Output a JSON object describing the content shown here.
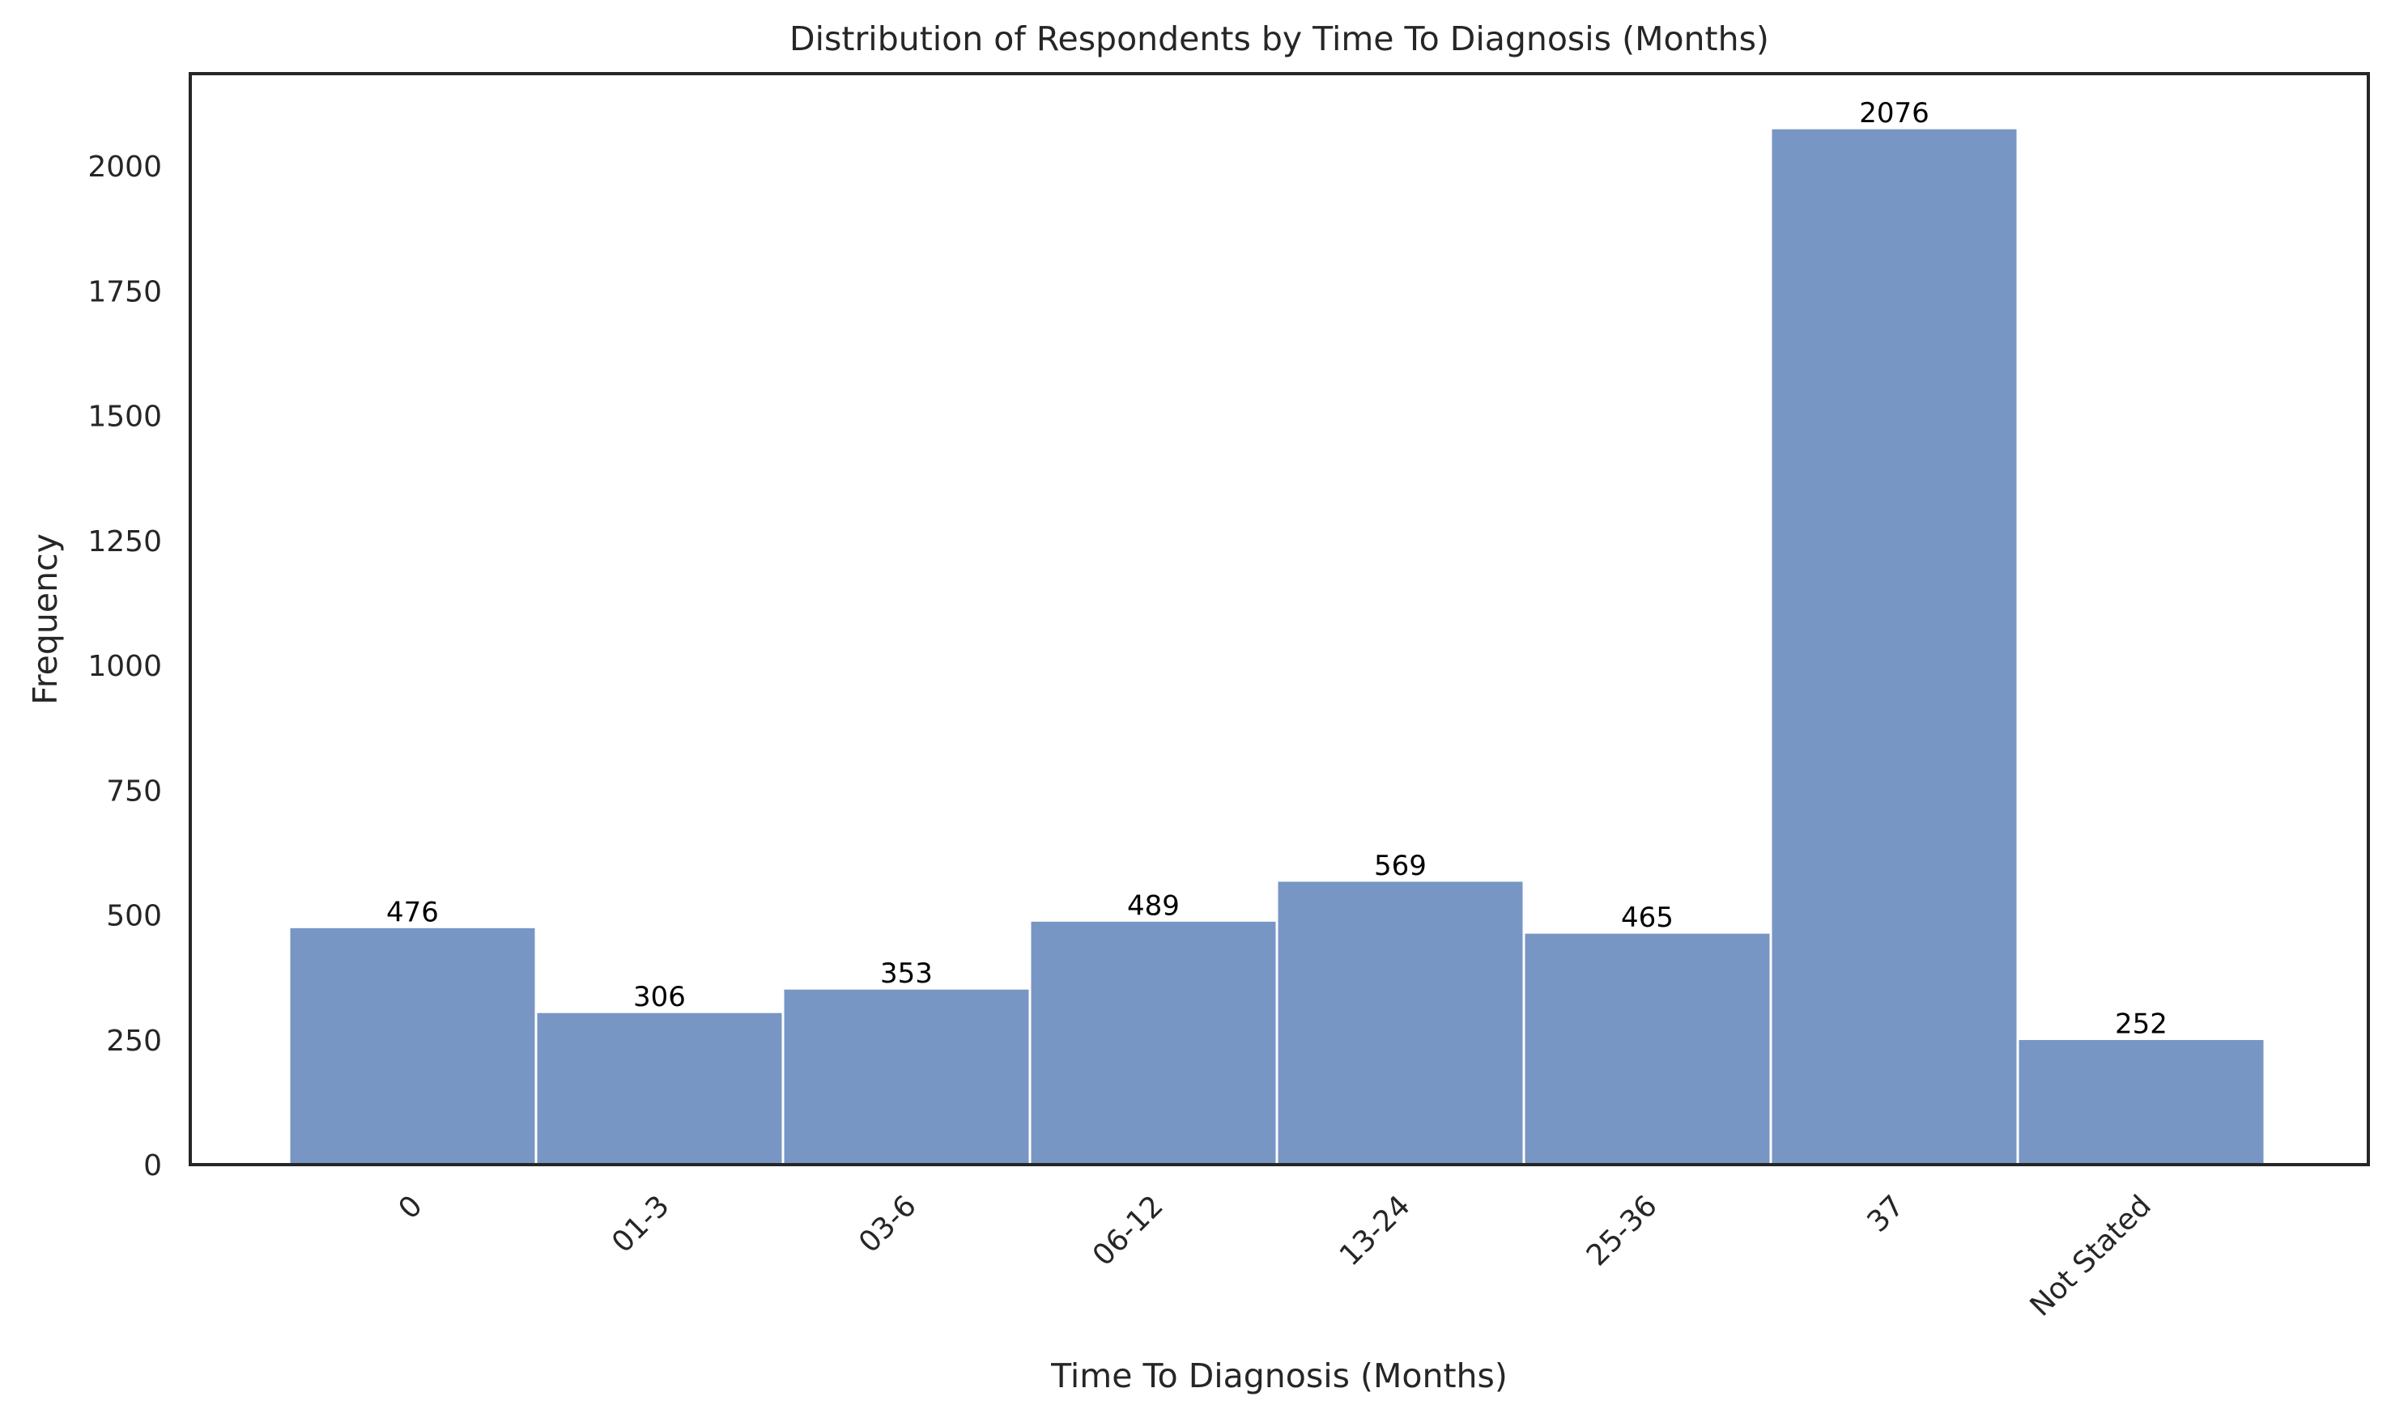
{
  "chart_data": {
    "type": "bar",
    "title": "Distribution of Respondents by Time To Diagnosis (Months)",
    "xlabel": "Time To Diagnosis (Months)",
    "ylabel": "Frequency",
    "categories": [
      "0",
      "01-3",
      "03-6",
      "06-12",
      "13-24",
      "25-36",
      "37",
      "Not Stated"
    ],
    "values": [
      476,
      306,
      353,
      489,
      569,
      465,
      2076,
      252
    ],
    "data_labels": [
      "476",
      "306",
      "353",
      "489",
      "569",
      "465",
      "2076",
      "252"
    ],
    "ylim": [
      0,
      2185
    ],
    "yticks": [
      0,
      250,
      500,
      750,
      1000,
      1250,
      1500,
      1750,
      2000
    ],
    "ytick_labels": [
      "0",
      "250",
      "500",
      "750",
      "1000",
      "1250",
      "1500",
      "1750",
      "2000"
    ],
    "grid": false,
    "legend": "none",
    "colors": {
      "bar": "#7896c4",
      "bar_edge": "#ffffff",
      "frame": "#262626"
    }
  }
}
